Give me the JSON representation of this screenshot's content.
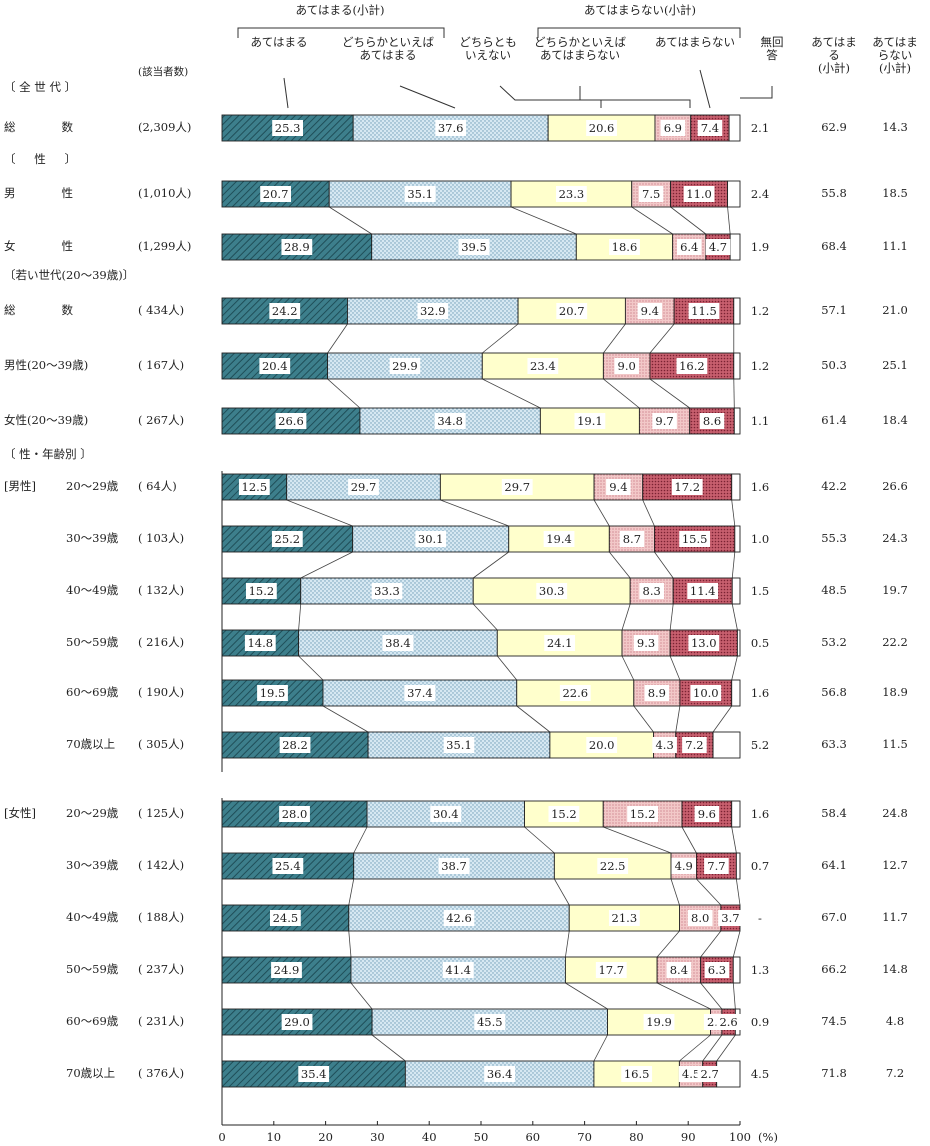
{
  "chart_data": {
    "type": "bar",
    "orientation": "horizontal",
    "stacked": true,
    "header": {
      "group_applies": "あてはまる(小計)",
      "group_not_applies": "あてはまらない(小計)",
      "respondents": "(該当者数)",
      "categories": [
        "あてはまる",
        "どちらかといえば\nあてはまる",
        "どちらとも\nいえない",
        "どちらかといえば\nあてはまらない",
        "あてはまらない",
        "無回\n答"
      ],
      "subtotal_applies": "あてはま\nる\n(小計)",
      "subtotal_not_applies": "あてはま\nらない\n(小計)"
    },
    "series_names": [
      "あてはまる",
      "どちらかといえばあてはまる",
      "どちらともいえない",
      "どちらかといえばあてはまらない",
      "あてはまらない",
      "無回答"
    ],
    "colors": [
      "#3d7f8c",
      "#d6e8f2",
      "#ffffcc",
      "#f2c8c8",
      "#c75f6e",
      "#ffffff"
    ],
    "xlim": [
      0,
      100
    ],
    "xticks": [
      "0",
      "10",
      "20",
      "30",
      "40",
      "50",
      "60",
      "70",
      "80",
      "90",
      "100"
    ],
    "x_unit": "(%)",
    "rows": [
      {
        "kind": "section",
        "label": "〔 全 世 代 〕"
      },
      {
        "kind": "bar",
        "label": "総　　　　数",
        "n": "(2,309人)",
        "values": [
          25.3,
          37.6,
          20.6,
          6.9,
          7.4,
          2.1
        ],
        "sum_applies": "62.9",
        "sum_not": "14.3"
      },
      {
        "kind": "section",
        "label": "〔 　 性 　 〕"
      },
      {
        "kind": "bar",
        "label": "男　　　　性",
        "n": "(1,010人)",
        "values": [
          20.7,
          35.1,
          23.3,
          7.5,
          11.0,
          2.4
        ],
        "sum_applies": "55.8",
        "sum_not": "18.5"
      },
      {
        "kind": "bar",
        "label": "女　　　　性",
        "n": "(1,299人)",
        "values": [
          28.9,
          39.5,
          18.6,
          6.4,
          4.7,
          1.9
        ],
        "sum_applies": "68.4",
        "sum_not": "11.1"
      },
      {
        "kind": "section",
        "label": "〔若い世代(20～39歳)〕"
      },
      {
        "kind": "bar",
        "label": "総　　　　数",
        "n": "( 434人)",
        "values": [
          24.2,
          32.9,
          20.7,
          9.4,
          11.5,
          1.2
        ],
        "sum_applies": "57.1",
        "sum_not": "21.0"
      },
      {
        "kind": "bar",
        "label": "男性(20～39歳)",
        "n": "( 167人)",
        "values": [
          20.4,
          29.9,
          23.4,
          9.0,
          16.2,
          1.2
        ],
        "sum_applies": "50.3",
        "sum_not": "25.1"
      },
      {
        "kind": "bar",
        "label": "女性(20～39歳)",
        "n": "( 267人)",
        "values": [
          26.6,
          34.8,
          19.1,
          9.7,
          8.6,
          1.1
        ],
        "sum_applies": "61.4",
        "sum_not": "18.4"
      },
      {
        "kind": "section",
        "label": "〔 性・年齢別 〕"
      },
      {
        "kind": "bar",
        "group": "[男性]",
        "label": "20～29歳",
        "n": "( 64人)",
        "values": [
          12.5,
          29.7,
          29.7,
          9.4,
          17.2,
          1.6
        ],
        "sum_applies": "42.2",
        "sum_not": "26.6"
      },
      {
        "kind": "bar",
        "label": "30～39歳",
        "n": "( 103人)",
        "values": [
          25.2,
          30.1,
          19.4,
          8.7,
          15.5,
          1.0
        ],
        "sum_applies": "55.3",
        "sum_not": "24.3"
      },
      {
        "kind": "bar",
        "label": "40～49歳",
        "n": "( 132人)",
        "values": [
          15.2,
          33.3,
          30.3,
          8.3,
          11.4,
          1.5
        ],
        "sum_applies": "48.5",
        "sum_not": "19.7"
      },
      {
        "kind": "bar",
        "label": "50～59歳",
        "n": "( 216人)",
        "values": [
          14.8,
          38.4,
          24.1,
          9.3,
          13.0,
          0.5
        ],
        "sum_applies": "53.2",
        "sum_not": "22.2"
      },
      {
        "kind": "bar",
        "label": "60～69歳",
        "n": "( 190人)",
        "values": [
          19.5,
          37.4,
          22.6,
          8.9,
          10.0,
          1.6
        ],
        "sum_applies": "56.8",
        "sum_not": "18.9"
      },
      {
        "kind": "bar",
        "label": "70歳以上",
        "n": "( 305人)",
        "values": [
          28.2,
          35.1,
          20.0,
          4.3,
          7.2,
          5.2
        ],
        "sum_applies": "63.3",
        "sum_not": "11.5"
      },
      {
        "kind": "bar",
        "group": "[女性]",
        "label": "20～29歳",
        "n": "( 125人)",
        "values": [
          28.0,
          30.4,
          15.2,
          15.2,
          9.6,
          1.6
        ],
        "sum_applies": "58.4",
        "sum_not": "24.8"
      },
      {
        "kind": "bar",
        "label": "30～39歳",
        "n": "( 142人)",
        "values": [
          25.4,
          38.7,
          22.5,
          4.9,
          7.7,
          0.7
        ],
        "sum_applies": "64.1",
        "sum_not": "12.7"
      },
      {
        "kind": "bar",
        "label": "40～49歳",
        "n": "( 188人)",
        "values": [
          24.5,
          42.6,
          21.3,
          8.0,
          3.7,
          0
        ],
        "na_text": "-",
        "sum_applies": "67.0",
        "sum_not": "11.7"
      },
      {
        "kind": "bar",
        "label": "50～59歳",
        "n": "( 237人)",
        "values": [
          24.9,
          41.4,
          17.7,
          8.4,
          6.3,
          1.3
        ],
        "sum_applies": "66.2",
        "sum_not": "14.8"
      },
      {
        "kind": "bar",
        "label": "60～69歳",
        "n": "( 231人)",
        "values": [
          29.0,
          45.5,
          19.9,
          2.2,
          2.6,
          0.9
        ],
        "sum_applies": "74.5",
        "sum_not": "4.8"
      },
      {
        "kind": "bar",
        "label": "70歳以上",
        "n": "( 376人)",
        "values": [
          35.4,
          36.4,
          16.5,
          4.5,
          2.7,
          4.5
        ],
        "sum_applies": "71.8",
        "sum_not": "7.2"
      }
    ]
  }
}
